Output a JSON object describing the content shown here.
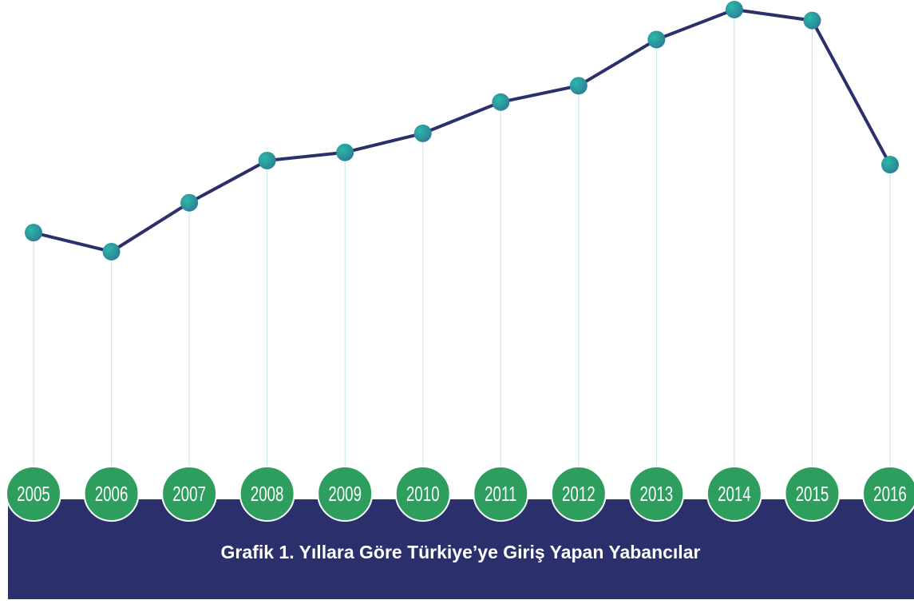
{
  "chart_data": {
    "type": "line",
    "title": "Grafik 1. Yıllara Göre Türkiye’ye Giriş Yapan Yabancılar",
    "categories": [
      "2005",
      "2006",
      "2007",
      "2008",
      "2009",
      "2010",
      "2011",
      "2012",
      "2013",
      "2014",
      "2015",
      "2016"
    ],
    "values": [
      20.4,
      19.0,
      22.6,
      25.7,
      26.3,
      27.7,
      30.0,
      31.2,
      34.6,
      36.8,
      36.0,
      25.4
    ],
    "color": "#2b2f6b",
    "marker_color": "#1fa9a4",
    "badge_color": "#2e9e5e",
    "band_color": "#2b2f6b"
  }
}
